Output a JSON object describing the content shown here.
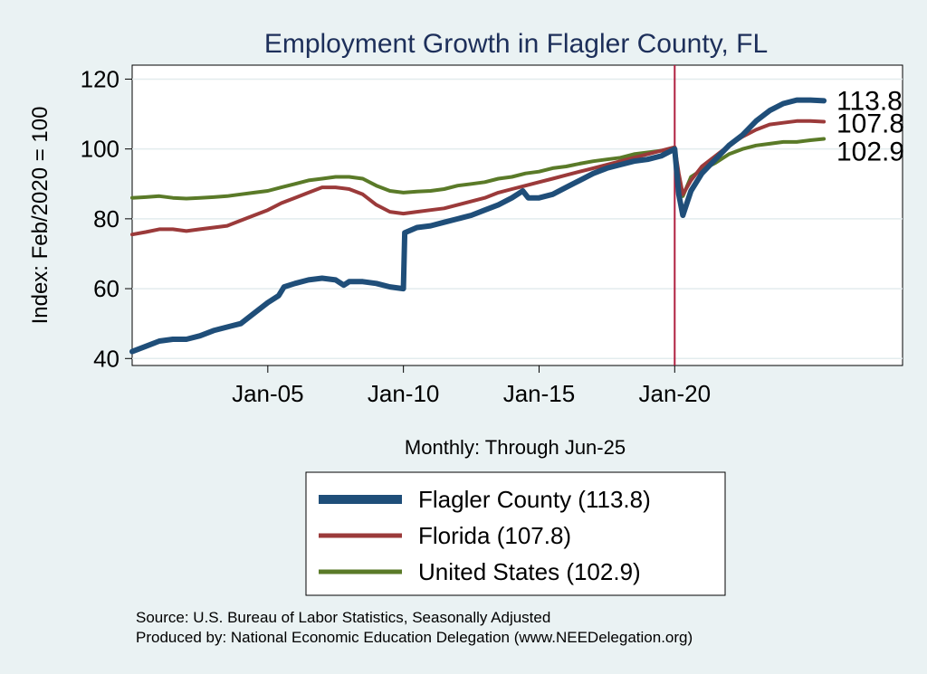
{
  "chart_data": {
    "type": "line",
    "title": "Employment Growth in Flagler  County, FL",
    "ylabel": "Index: Feb/2020 = 100",
    "xlabel": "Monthly: Through Jun-25",
    "ylim": [
      38,
      124
    ],
    "xlim": [
      2000.0,
      2028.4
    ],
    "yticks": [
      40,
      60,
      80,
      100,
      120
    ],
    "xticks": [
      {
        "label": "Jan-05",
        "x": 2005.0
      },
      {
        "label": "Jan-10",
        "x": 2010.0
      },
      {
        "label": "Jan-15",
        "x": 2015.0
      },
      {
        "label": "Jan-20",
        "x": 2020.0
      }
    ],
    "reference_line": {
      "x": 2020.0,
      "color": "#b02040"
    },
    "grid": true,
    "legend_position": "bottom",
    "series": [
      {
        "name": "Flagler  County",
        "legend_label": "Flagler  County (113.8)",
        "end_label": "113.8",
        "color": "#1f4e79",
        "width": 6,
        "points": [
          [
            2000.0,
            42
          ],
          [
            2000.5,
            43.5
          ],
          [
            2001.0,
            45
          ],
          [
            2001.5,
            45.5
          ],
          [
            2002.0,
            45.5
          ],
          [
            2002.5,
            46.5
          ],
          [
            2003.0,
            48
          ],
          [
            2003.5,
            49
          ],
          [
            2004.0,
            50
          ],
          [
            2004.5,
            53
          ],
          [
            2005.0,
            56
          ],
          [
            2005.4,
            58
          ],
          [
            2005.6,
            60.5
          ],
          [
            2006.0,
            61.5
          ],
          [
            2006.5,
            62.5
          ],
          [
            2007.0,
            63
          ],
          [
            2007.5,
            62.5
          ],
          [
            2007.8,
            61
          ],
          [
            2008.0,
            62
          ],
          [
            2008.5,
            62
          ],
          [
            2009.0,
            61.5
          ],
          [
            2009.5,
            60.5
          ],
          [
            2010.0,
            60
          ],
          [
            2010.05,
            76
          ],
          [
            2010.5,
            77.5
          ],
          [
            2011.0,
            78
          ],
          [
            2011.5,
            79
          ],
          [
            2012.0,
            80
          ],
          [
            2012.5,
            81
          ],
          [
            2013.0,
            82.5
          ],
          [
            2013.5,
            84
          ],
          [
            2014.0,
            86
          ],
          [
            2014.4,
            88
          ],
          [
            2014.6,
            86
          ],
          [
            2015.0,
            86
          ],
          [
            2015.5,
            87
          ],
          [
            2016.0,
            89
          ],
          [
            2016.5,
            91
          ],
          [
            2017.0,
            93
          ],
          [
            2017.5,
            94.5
          ],
          [
            2018.0,
            95.5
          ],
          [
            2018.5,
            96.5
          ],
          [
            2019.0,
            97
          ],
          [
            2019.5,
            98
          ],
          [
            2020.0,
            100
          ],
          [
            2020.15,
            87
          ],
          [
            2020.3,
            81
          ],
          [
            2020.6,
            88
          ],
          [
            2021.0,
            93
          ],
          [
            2021.5,
            97
          ],
          [
            2022.0,
            101
          ],
          [
            2022.5,
            104
          ],
          [
            2023.0,
            108
          ],
          [
            2023.5,
            111
          ],
          [
            2024.0,
            113
          ],
          [
            2024.5,
            114
          ],
          [
            2025.0,
            114
          ],
          [
            2025.5,
            113.8
          ]
        ]
      },
      {
        "name": "Florida",
        "legend_label": "Florida (107.8)",
        "end_label": "107.8",
        "color": "#9b3a3a",
        "width": 4,
        "points": [
          [
            2000.0,
            75.5
          ],
          [
            2000.5,
            76.2
          ],
          [
            2001.0,
            77
          ],
          [
            2001.5,
            77
          ],
          [
            2002.0,
            76.5
          ],
          [
            2002.5,
            77
          ],
          [
            2003.0,
            77.5
          ],
          [
            2003.5,
            78
          ],
          [
            2004.0,
            79.5
          ],
          [
            2004.5,
            81
          ],
          [
            2005.0,
            82.5
          ],
          [
            2005.5,
            84.5
          ],
          [
            2006.0,
            86
          ],
          [
            2006.5,
            87.5
          ],
          [
            2007.0,
            89
          ],
          [
            2007.5,
            89
          ],
          [
            2008.0,
            88.5
          ],
          [
            2008.5,
            87
          ],
          [
            2009.0,
            84
          ],
          [
            2009.5,
            82
          ],
          [
            2010.0,
            81.5
          ],
          [
            2010.5,
            82
          ],
          [
            2011.0,
            82.5
          ],
          [
            2011.5,
            83
          ],
          [
            2012.0,
            84
          ],
          [
            2012.5,
            85
          ],
          [
            2013.0,
            86
          ],
          [
            2013.5,
            87.5
          ],
          [
            2014.0,
            88.5
          ],
          [
            2014.5,
            89.5
          ],
          [
            2015.0,
            90.5
          ],
          [
            2015.5,
            91.5
          ],
          [
            2016.0,
            92.5
          ],
          [
            2016.5,
            93.5
          ],
          [
            2017.0,
            94.5
          ],
          [
            2017.5,
            95.5
          ],
          [
            2018.0,
            96.5
          ],
          [
            2018.5,
            97.5
          ],
          [
            2019.0,
            98.5
          ],
          [
            2019.5,
            99.5
          ],
          [
            2020.0,
            100.5
          ],
          [
            2020.15,
            93
          ],
          [
            2020.3,
            87
          ],
          [
            2020.6,
            91
          ],
          [
            2021.0,
            95
          ],
          [
            2021.5,
            98
          ],
          [
            2022.0,
            101
          ],
          [
            2022.5,
            103.5
          ],
          [
            2023.0,
            105.5
          ],
          [
            2023.5,
            107
          ],
          [
            2024.0,
            107.5
          ],
          [
            2024.5,
            108
          ],
          [
            2025.0,
            108
          ],
          [
            2025.5,
            107.8
          ]
        ]
      },
      {
        "name": "United States",
        "legend_label": "United States (102.9)",
        "end_label": "102.9",
        "color": "#5a7a28",
        "width": 4,
        "points": [
          [
            2000.0,
            86
          ],
          [
            2000.5,
            86.2
          ],
          [
            2001.0,
            86.5
          ],
          [
            2001.5,
            86
          ],
          [
            2002.0,
            85.8
          ],
          [
            2002.5,
            86
          ],
          [
            2003.0,
            86.2
          ],
          [
            2003.5,
            86.5
          ],
          [
            2004.0,
            87
          ],
          [
            2004.5,
            87.5
          ],
          [
            2005.0,
            88
          ],
          [
            2005.5,
            89
          ],
          [
            2006.0,
            90
          ],
          [
            2006.5,
            91
          ],
          [
            2007.0,
            91.5
          ],
          [
            2007.5,
            92
          ],
          [
            2008.0,
            92
          ],
          [
            2008.5,
            91.5
          ],
          [
            2009.0,
            89.5
          ],
          [
            2009.5,
            88
          ],
          [
            2010.0,
            87.5
          ],
          [
            2010.5,
            87.8
          ],
          [
            2011.0,
            88
          ],
          [
            2011.5,
            88.5
          ],
          [
            2012.0,
            89.5
          ],
          [
            2012.5,
            90
          ],
          [
            2013.0,
            90.5
          ],
          [
            2013.5,
            91.5
          ],
          [
            2014.0,
            92
          ],
          [
            2014.5,
            93
          ],
          [
            2015.0,
            93.5
          ],
          [
            2015.5,
            94.5
          ],
          [
            2016.0,
            95
          ],
          [
            2016.5,
            95.8
          ],
          [
            2017.0,
            96.5
          ],
          [
            2017.5,
            97
          ],
          [
            2018.0,
            97.5
          ],
          [
            2018.5,
            98.5
          ],
          [
            2019.0,
            99
          ],
          [
            2019.5,
            99.5
          ],
          [
            2020.0,
            100
          ],
          [
            2020.15,
            92
          ],
          [
            2020.3,
            86.5
          ],
          [
            2020.6,
            92
          ],
          [
            2021.0,
            94
          ],
          [
            2021.5,
            96
          ],
          [
            2022.0,
            98.5
          ],
          [
            2022.5,
            100
          ],
          [
            2023.0,
            101
          ],
          [
            2023.5,
            101.5
          ],
          [
            2024.0,
            102
          ],
          [
            2024.5,
            102
          ],
          [
            2025.0,
            102.5
          ],
          [
            2025.5,
            102.9
          ]
        ]
      }
    ]
  },
  "footer": {
    "source": "Source: U.S. Bureau of Labor Statistics, Seasonally Adjusted",
    "produced_by": "Produced by: National Economic Education Delegation (www.NEEDelegation.org)"
  }
}
